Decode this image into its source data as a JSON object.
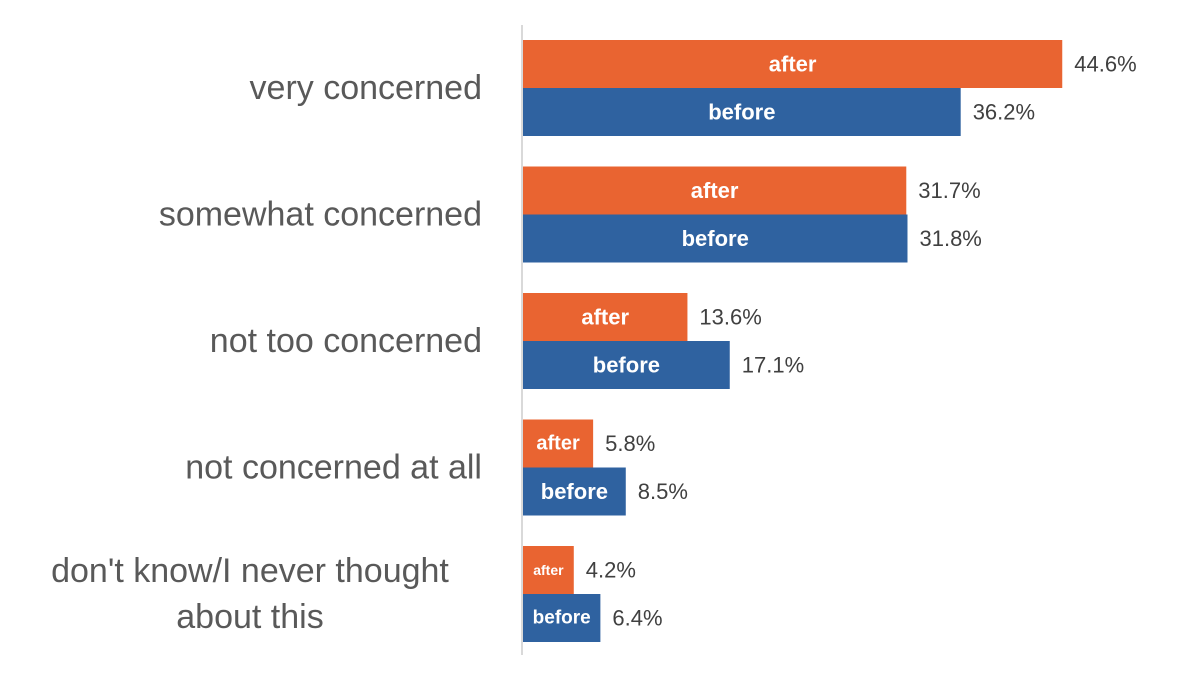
{
  "chart_data": {
    "type": "bar",
    "orientation": "horizontal",
    "categories": [
      [
        "very concerned"
      ],
      [
        "somewhat concerned"
      ],
      [
        "not too concerned"
      ],
      [
        "not concerned at all"
      ],
      [
        "don't know/I never thought",
        "about this"
      ]
    ],
    "series": [
      {
        "name": "after",
        "color": "#E96431",
        "values": [
          44.6,
          31.7,
          13.6,
          5.8,
          4.2
        ]
      },
      {
        "name": "before",
        "color": "#2F62A0",
        "values": [
          36.2,
          31.8,
          17.1,
          8.5,
          6.4
        ]
      }
    ],
    "value_suffix": "%",
    "xlim": [
      0,
      55
    ],
    "grid": false,
    "legend": "none",
    "axis_color": "#D9D9D9"
  }
}
